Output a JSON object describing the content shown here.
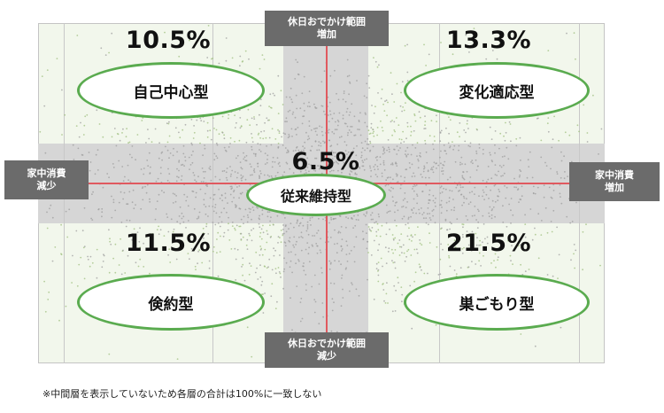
{
  "axes": {
    "top": [
      "休日おでかけ範囲",
      "増加"
    ],
    "bottom": [
      "休日おでかけ範囲",
      "減少"
    ],
    "left": [
      "家中消費",
      "減少"
    ],
    "right": [
      "家中消費",
      "増加"
    ]
  },
  "segments": {
    "top_left": {
      "label": "自己中心型",
      "percent": "10.5%"
    },
    "top_right": {
      "label": "変化適応型",
      "percent": "13.3%"
    },
    "center": {
      "label": "従来維持型",
      "percent": "6.5%"
    },
    "bottom_left": {
      "label": "倹約型",
      "percent": "11.5%"
    },
    "bottom_right": {
      "label": "巣ごもり型",
      "percent": "21.5%"
    }
  },
  "note": "※中間層を表示していないため各層の合計は100%に一致しない",
  "colors": {
    "quadrant_bg": "#f2f7ec",
    "band_bg": "#d6d6d6",
    "axis_line": "#e0595f",
    "oval_border": "#5aab4f",
    "axis_box": "#6b6b6b",
    "dot_gray": "#9e9e9e",
    "dot_green": "#9fbf7f"
  }
}
